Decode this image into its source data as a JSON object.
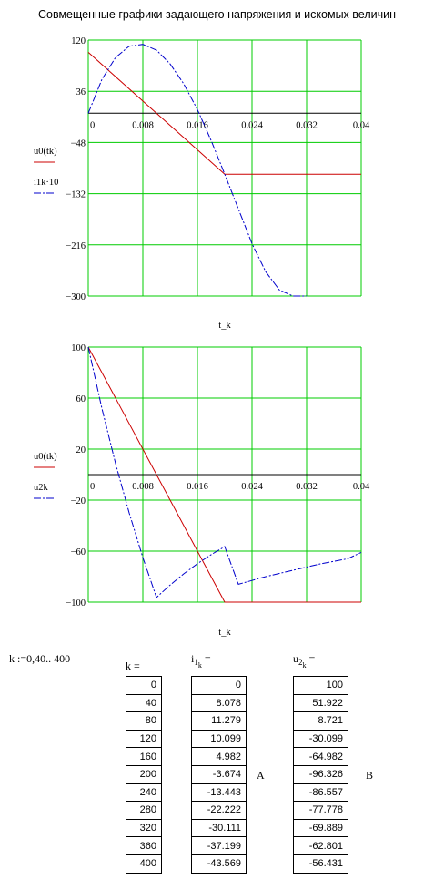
{
  "title": "Совмещенные графики задающего напряжения и искомых величин",
  "colors": {
    "grid": "#00cc00",
    "u0": "#cc0000",
    "series2": "#0000cc"
  },
  "chart_data": [
    {
      "type": "line",
      "xlabel": "t_k",
      "x_ticks": [
        "0",
        "0.008",
        "0.016",
        "0.024",
        "0.032",
        "0.04"
      ],
      "y_ticks": [
        "120",
        "36",
        "−48",
        "−132",
        "−216",
        "−300"
      ],
      "xlim": [
        0,
        0.04
      ],
      "ylim": [
        -300,
        120
      ],
      "legend": [
        {
          "name": "u0(tk)",
          "color": "#cc0000",
          "style": "solid"
        },
        {
          "name": "i1k·10",
          "color": "#0000cc",
          "style": "dash-dot"
        }
      ],
      "series": [
        {
          "name": "u0(tk)",
          "x": [
            0,
            0.02,
            0.04
          ],
          "y": [
            100,
            -100,
            -100
          ]
        },
        {
          "name": "i1k·10",
          "x": [
            0,
            0.002,
            0.004,
            0.006,
            0.008,
            0.01,
            0.012,
            0.014,
            0.016,
            0.018,
            0.02,
            0.022,
            0.024,
            0.026,
            0.028,
            0.03,
            0.032
          ],
          "y": [
            0,
            55.5,
            91.5,
            110,
            113,
            103.5,
            80.8,
            48.1,
            5.9,
            -44.5,
            -100,
            -157,
            -214,
            -260,
            -290,
            -302,
            -305
          ]
        }
      ]
    },
    {
      "type": "line",
      "xlabel": "t_k",
      "x_ticks": [
        "0",
        "0.008",
        "0.016",
        "0.024",
        "0.032",
        "0.04"
      ],
      "y_ticks": [
        "100",
        "60",
        "20",
        "−20",
        "−60",
        "−100"
      ],
      "xlim": [
        0,
        0.04
      ],
      "ylim": [
        -100,
        100
      ],
      "legend": [
        {
          "name": "u0(tk)",
          "color": "#cc0000",
          "style": "solid"
        },
        {
          "name": "u2k",
          "color": "#0000cc",
          "style": "dash-dot"
        }
      ],
      "series": [
        {
          "name": "u0(tk)",
          "x": [
            0,
            0.02,
            0.04
          ],
          "y": [
            100,
            -100,
            -100
          ]
        },
        {
          "name": "u2k",
          "x": [
            0,
            0.002,
            0.004,
            0.006,
            0.008,
            0.01,
            0.012,
            0.014,
            0.016,
            0.018,
            0.02,
            0.022,
            0.024,
            0.026,
            0.028,
            0.03,
            0.032,
            0.034,
            0.036,
            0.038,
            0.04
          ],
          "y": [
            100,
            51.922,
            8.721,
            -30.099,
            -64.982,
            -96.326,
            -86.557,
            -77.778,
            -69.889,
            -62.801,
            -56.431,
            -86,
            -83,
            -80,
            -77.5,
            -75,
            -72.5,
            -70,
            -68,
            -66,
            -61
          ]
        }
      ]
    }
  ],
  "range_def": "k :=0,40.. 400",
  "tables": {
    "k": {
      "header": "k =",
      "values": [
        "0",
        "40",
        "80",
        "120",
        "160",
        "200",
        "240",
        "280",
        "320",
        "360",
        "400"
      ]
    },
    "i1k": {
      "header_base": "i",
      "header_sub": "1",
      "header_subsub": "k",
      "header_tail": " =",
      "unit": "A",
      "values": [
        "0",
        "8.078",
        "11.279",
        "10.099",
        "4.982",
        "-3.674",
        "-13.443",
        "-22.222",
        "-30.111",
        "-37.199",
        "-43.569"
      ]
    },
    "u2k": {
      "header_base": "u",
      "header_sub": "2",
      "header_subsub": "k",
      "header_tail": " =",
      "unit": "B",
      "values": [
        "100",
        "51.922",
        "8.721",
        "-30.099",
        "-64.982",
        "-96.326",
        "-86.557",
        "-77.778",
        "-69.889",
        "-62.801",
        "-56.431"
      ]
    }
  }
}
